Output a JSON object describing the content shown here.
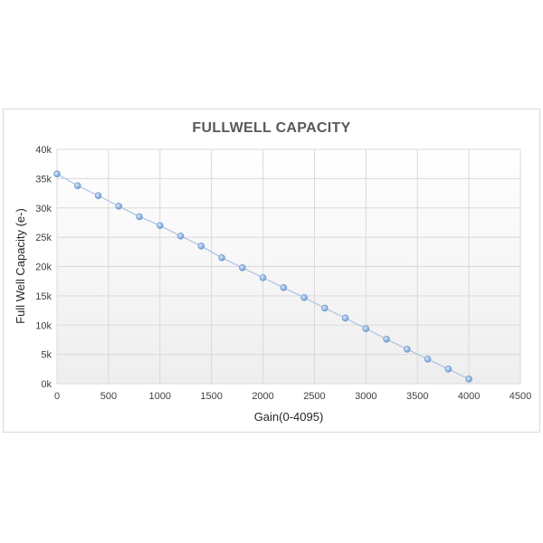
{
  "chart_data": {
    "type": "scatter",
    "title": "FULLWELL CAPACITY",
    "xlabel": "Gain(0-4095)",
    "ylabel": "Full Well Capacity (e-)",
    "xlim": [
      0,
      4500
    ],
    "ylim": [
      0,
      40000
    ],
    "x_ticks": [
      0,
      500,
      1000,
      1500,
      2000,
      2500,
      3000,
      3500,
      4000,
      4500
    ],
    "x_tick_labels": [
      "0",
      "500",
      "1000",
      "1500",
      "2000",
      "2500",
      "3000",
      "3500",
      "4000",
      "4500"
    ],
    "y_ticks": [
      0,
      5000,
      10000,
      15000,
      20000,
      25000,
      30000,
      35000,
      40000
    ],
    "y_tick_labels": [
      "0k",
      "5k",
      "10k",
      "15k",
      "20k",
      "25k",
      "30k",
      "35k",
      "40k"
    ],
    "grid": true,
    "series": [
      {
        "x": [
          0,
          200,
          400,
          600,
          800,
          1000,
          1200,
          1400,
          1600,
          1800,
          2000,
          2200,
          2400,
          2600,
          2800,
          3000,
          3200,
          3400,
          3600,
          3800,
          4000
        ],
        "y": [
          35800,
          33800,
          32100,
          30300,
          28500,
          27000,
          25200,
          23500,
          21500,
          19800,
          18100,
          16400,
          14700,
          12900,
          11200,
          9400,
          7600,
          5900,
          4200,
          2500,
          800
        ],
        "color": "#6f9bd1",
        "line_color": "#a9c4e4"
      }
    ]
  }
}
